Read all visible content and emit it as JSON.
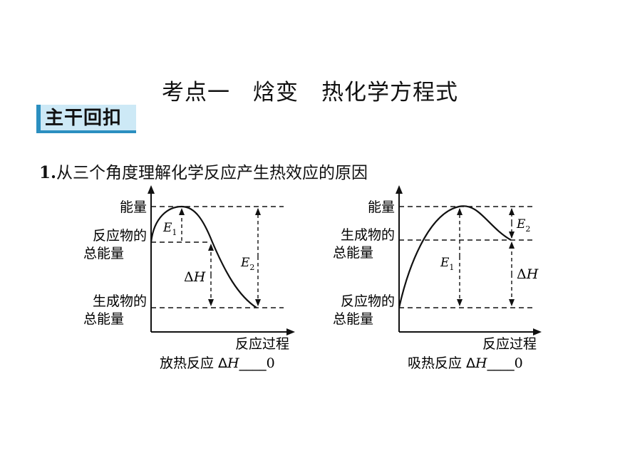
{
  "title": "考点一　焓变　热化学方程式",
  "badge": "主干回扣",
  "section": {
    "number": "1.",
    "text": "从三个角度理解化学反应产生热效应的原因"
  },
  "exothermic": {
    "y_axis_label": "能量",
    "reactants_line1": "反应物的",
    "reactants_line2": "总能量",
    "products_line1": "生成物的",
    "products_line2": "总能量",
    "e1": "E",
    "e1_sub": "1",
    "e2": "E",
    "e2_sub": "2",
    "dh_delta": "Δ",
    "dh_h": "H",
    "x_axis_label": "反应过程",
    "caption_prefix": "放热反应 Δ",
    "caption_h": "H",
    "caption_blank": "____",
    "caption_value": "0"
  },
  "endothermic": {
    "y_axis_label": "能量",
    "products_line1": "生成物的",
    "products_line2": "总能量",
    "reactants_line1": "反应物的",
    "reactants_line2": "总能量",
    "e1": "E",
    "e1_sub": "1",
    "e2": "E",
    "e2_sub": "2",
    "dh_delta": "Δ",
    "dh_h": "H",
    "x_axis_label": "反应过程",
    "caption_prefix": "吸热反应 Δ",
    "caption_h": "H",
    "caption_blank": "____",
    "caption_value": "0"
  }
}
